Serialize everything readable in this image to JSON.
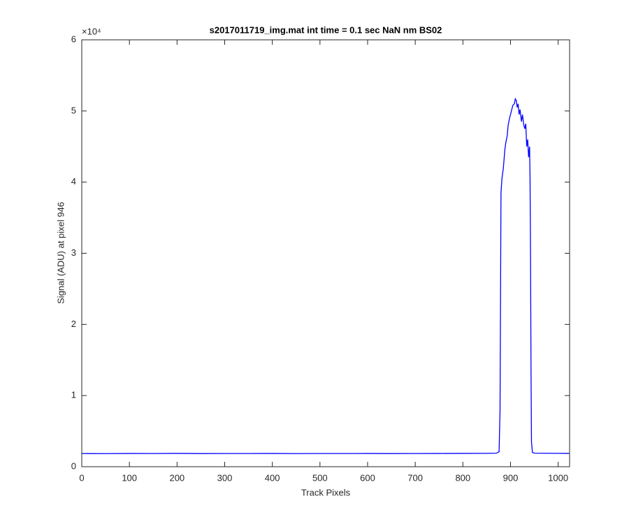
{
  "chart_data": {
    "type": "line",
    "title": "s2017011719_img.mat int time = 0.1 sec  NaN nm BS02",
    "x_label": "Track Pixels",
    "y_label": "Signal (ADU) at pixel 946",
    "y_exponent_label": "×10⁴",
    "xlim": [
      0,
      1024
    ],
    "ylim": [
      0,
      60000
    ],
    "xticks": [
      0,
      100,
      200,
      300,
      400,
      500,
      600,
      700,
      800,
      900,
      1000
    ],
    "yticks": [
      0,
      {
        "value": 10000,
        "label": "1"
      },
      {
        "value": 20000,
        "label": "2"
      },
      {
        "value": 30000,
        "label": "3"
      },
      {
        "value": 40000,
        "label": "4"
      },
      {
        "value": 50000,
        "label": "5"
      },
      {
        "value": 60000,
        "label": "6"
      }
    ],
    "x": [
      0,
      50,
      100,
      150,
      200,
      250,
      300,
      350,
      400,
      450,
      500,
      550,
      600,
      650,
      700,
      750,
      800,
      850,
      870,
      876,
      878,
      880,
      882,
      885,
      888,
      890,
      893,
      895,
      898,
      900,
      903,
      905,
      908,
      910,
      912,
      914,
      916,
      918,
      920,
      923,
      925,
      928,
      930,
      932,
      934,
      936,
      938,
      940,
      941,
      942,
      943,
      944,
      946,
      950,
      1000,
      1023
    ],
    "series": [
      {
        "name": "signal",
        "color": "#0000ff",
        "values": [
          1850,
          1840,
          1860,
          1850,
          1870,
          1845,
          1855,
          1850,
          1860,
          1840,
          1855,
          1850,
          1860,
          1845,
          1855,
          1860,
          1870,
          1880,
          1900,
          2100,
          8000,
          38500,
          40500,
          42000,
          44500,
          45500,
          46500,
          48000,
          49000,
          49500,
          50300,
          50800,
          51000,
          51700,
          51500,
          50500,
          51000,
          49500,
          50200,
          48500,
          49500,
          48000,
          47500,
          48200,
          45000,
          46000,
          43500,
          45000,
          40500,
          30000,
          14000,
          3500,
          2000,
          1900,
          1880,
          1870
        ]
      }
    ]
  }
}
